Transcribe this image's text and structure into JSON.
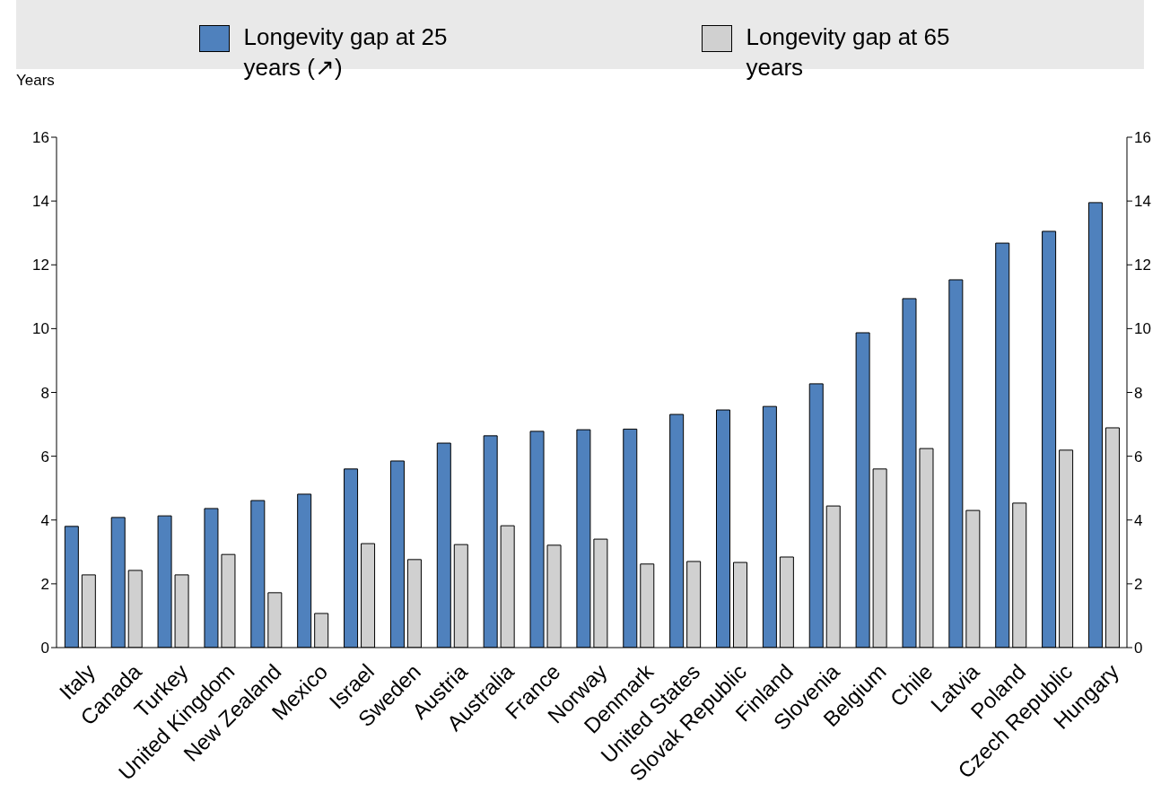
{
  "chart_data": {
    "type": "bar",
    "ylabel": "Years",
    "categories": [
      "Italy",
      "Canada",
      "Turkey",
      "United Kingdom",
      "New Zealand",
      "Mexico",
      "Israel",
      "Sweden",
      "Austria",
      "Australia",
      "France",
      "Norway",
      "Denmark",
      "United States",
      "Slovak Republic",
      "Finland",
      "Slovenia",
      "Belgium",
      "Chile",
      "Latvia",
      "Poland",
      "Czech Republic",
      "Hungary"
    ],
    "series": [
      {
        "name": "Longevity gap at 25 years (↗)",
        "color": "#4f81bd",
        "values": [
          3.8,
          4.08,
          4.13,
          4.36,
          4.61,
          4.81,
          5.6,
          5.85,
          6.41,
          6.64,
          6.78,
          6.83,
          6.85,
          7.31,
          7.45,
          7.56,
          8.27,
          9.87,
          10.94,
          11.53,
          12.68,
          13.05,
          13.95
        ]
      },
      {
        "name": "Longevity gap at 65 years",
        "color": "#d0d0d0",
        "values": [
          2.28,
          2.42,
          2.28,
          2.92,
          1.72,
          1.07,
          3.26,
          2.76,
          3.23,
          3.82,
          3.21,
          3.4,
          2.62,
          2.7,
          2.67,
          2.84,
          4.44,
          5.6,
          6.24,
          4.3,
          4.53,
          6.19,
          6.89
        ]
      }
    ],
    "ylim": [
      0,
      16
    ],
    "yticks": [
      0,
      2,
      4,
      6,
      8,
      10,
      12,
      14,
      16
    ],
    "y2lim": [
      0,
      16
    ],
    "y2ticks": [
      0,
      2,
      4,
      6,
      8,
      10,
      12,
      14,
      16
    ],
    "grid": false,
    "legend": "top"
  }
}
